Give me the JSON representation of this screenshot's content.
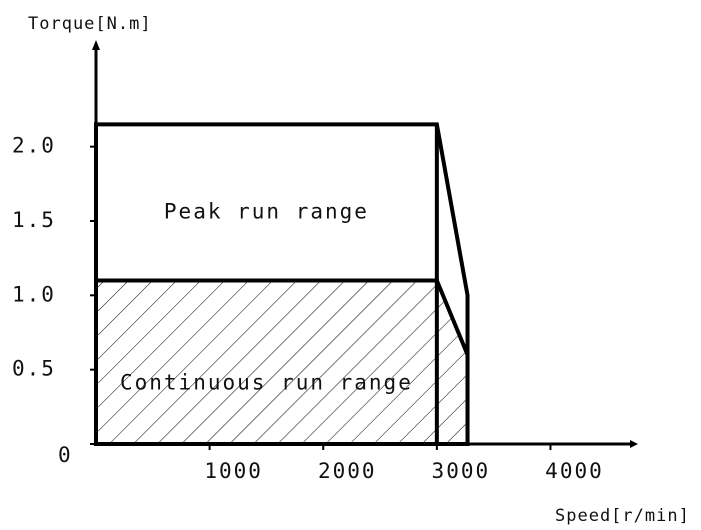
{
  "chart_data": {
    "type": "torque-speed",
    "y_label": "Torque[N.m]",
    "x_label": "Speed[r/min]",
    "annotations": [
      "Peak run range",
      "Continuous run range"
    ],
    "series": [
      {
        "x": [
          0,
          0,
          3000,
          3270,
          3270
        ],
        "values": [
          0,
          2.15,
          2.15,
          1.0,
          0
        ],
        "color": "#000000",
        "fill": "none"
      },
      {
        "x": [
          0,
          0,
          3000,
          3270,
          3270
        ],
        "values": [
          0,
          1.1,
          1.1,
          0.6,
          0
        ],
        "color": "#000000",
        "fill": "hatch"
      }
    ],
    "xlim": [
      0,
      4700
    ],
    "ylim": [
      0,
      2.65
    ],
    "xticks": [
      1000,
      2000,
      3000,
      4000
    ],
    "yticks": [
      0,
      {
        "value": 0.5,
        "label": "0.5"
      },
      {
        "value": 1,
        "label": "1.0"
      },
      {
        "value": 1.5,
        "label": "1.5"
      },
      {
        "value": 2,
        "label": "2.0"
      }
    ],
    "grid": false
  }
}
